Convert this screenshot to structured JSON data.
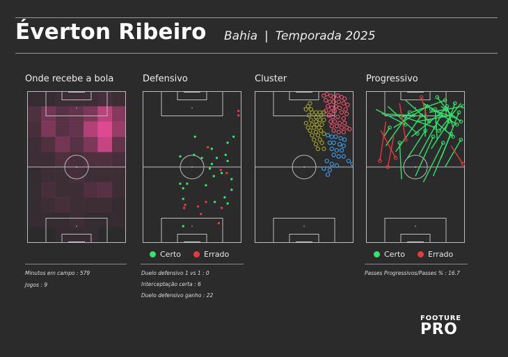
{
  "header": {
    "player": "Éverton Ribeiro",
    "team": "Bahia",
    "separator": "|",
    "season": "Temporada  2025"
  },
  "colors": {
    "background": "#2b2b2b",
    "line": "#bdbdbd",
    "certo": "#33e36a",
    "errado": "#e53a3a",
    "heat": "#ff4fa3",
    "cluster_olive": "#9aa024",
    "cluster_red": "#e8506a",
    "cluster_blue": "#3a9bea"
  },
  "panels": {
    "heatmap": {
      "title": "Onde recebe a bola"
    },
    "defensive": {
      "title": "Defensivo"
    },
    "cluster": {
      "title": "Cluster"
    },
    "progressive": {
      "title": "Progressivo"
    }
  },
  "legend": {
    "certo": "Certo",
    "errado": "Errado"
  },
  "stats": {
    "minutes": "Minutos em campo : 579",
    "games": "Jogos : 9",
    "duel_1v1": "Duelo defensivo 1 vs 1 :  0",
    "interceptions": "Interceptação certa :  6",
    "duels_won": "Duelo defensivo ganho :  22",
    "progressive_pct": "Passes Progressivos/Passes % :  16.7"
  },
  "brand": {
    "line1": "FOOTURE",
    "line2": "PRO"
  },
  "chart_data": [
    {
      "type": "heatmap",
      "title": "Onde recebe a bola",
      "grid_cols": 7,
      "grid_rows": 10,
      "values": [
        [
          0.05,
          0.05,
          0.1,
          0.1,
          0.1,
          0.15,
          0.1
        ],
        [
          0.2,
          0.4,
          0.25,
          0.3,
          0.45,
          0.8,
          0.5
        ],
        [
          0.15,
          0.45,
          0.25,
          0.3,
          0.75,
          1.0,
          0.6
        ],
        [
          0.1,
          0.2,
          0.4,
          0.25,
          0.45,
          0.85,
          0.3
        ],
        [
          0.1,
          0.1,
          0.2,
          0.15,
          0.2,
          0.2,
          0.15
        ],
        [
          0.05,
          0.1,
          0.1,
          0.15,
          0.1,
          0.1,
          0.1
        ],
        [
          0.05,
          0.15,
          0.1,
          0.1,
          0.2,
          0.25,
          0.1
        ],
        [
          0.05,
          0.1,
          0.15,
          0.1,
          0.1,
          0.1,
          0.05
        ],
        [
          0.05,
          0.05,
          0.05,
          0.1,
          0.05,
          0.05,
          0.05
        ],
        [
          0.0,
          0.0,
          0.05,
          0.05,
          0.05,
          0.0,
          0.0
        ]
      ]
    },
    {
      "type": "scatter",
      "title": "Defensivo",
      "series": [
        {
          "name": "Certo",
          "points": [
            [
              0.53,
              0.3
            ],
            [
              0.92,
              0.3
            ],
            [
              0.86,
              0.34
            ],
            [
              0.7,
              0.38
            ],
            [
              0.52,
              0.42
            ],
            [
              0.38,
              0.43
            ],
            [
              0.84,
              0.42
            ],
            [
              0.6,
              0.44
            ],
            [
              0.75,
              0.44
            ],
            [
              0.86,
              0.46
            ],
            [
              0.7,
              0.48
            ],
            [
              0.68,
              0.51
            ],
            [
              0.8,
              0.54
            ],
            [
              0.72,
              0.56
            ],
            [
              0.9,
              0.58
            ],
            [
              0.45,
              0.61
            ],
            [
              0.38,
              0.61
            ],
            [
              0.64,
              0.62
            ],
            [
              0.41,
              0.64
            ],
            [
              0.9,
              0.65
            ],
            [
              0.83,
              0.7
            ],
            [
              0.41,
              0.71
            ],
            [
              0.73,
              0.73
            ],
            [
              0.86,
              0.74
            ],
            [
              0.41,
              0.89
            ]
          ]
        },
        {
          "name": "Errado",
          "points": [
            [
              0.97,
              0.13
            ],
            [
              0.97,
              0.16
            ],
            [
              0.66,
              0.37
            ],
            [
              0.79,
              0.52
            ],
            [
              0.85,
              0.54
            ],
            [
              0.64,
              0.73
            ],
            [
              0.56,
              0.76
            ],
            [
              0.43,
              0.75
            ],
            [
              0.42,
              0.77
            ],
            [
              0.59,
              0.81
            ],
            [
              0.8,
              0.77
            ],
            [
              0.77,
              0.87
            ]
          ]
        }
      ]
    },
    {
      "type": "scatter",
      "title": "Cluster",
      "series": [
        {
          "name": "olive",
          "points": [
            [
              0.56,
              0.08
            ],
            [
              0.54,
              0.1
            ],
            [
              0.52,
              0.12
            ],
            [
              0.57,
              0.12
            ],
            [
              0.58,
              0.14
            ],
            [
              0.62,
              0.14
            ],
            [
              0.66,
              0.14
            ],
            [
              0.7,
              0.14
            ],
            [
              0.55,
              0.16
            ],
            [
              0.62,
              0.17
            ],
            [
              0.67,
              0.16
            ],
            [
              0.57,
              0.19
            ],
            [
              0.62,
              0.2
            ],
            [
              0.66,
              0.19
            ],
            [
              0.7,
              0.19
            ],
            [
              0.52,
              0.21
            ],
            [
              0.58,
              0.22
            ],
            [
              0.63,
              0.22
            ],
            [
              0.68,
              0.22
            ],
            [
              0.54,
              0.24
            ],
            [
              0.6,
              0.24
            ],
            [
              0.65,
              0.24
            ],
            [
              0.56,
              0.26
            ],
            [
              0.62,
              0.27
            ],
            [
              0.67,
              0.26
            ],
            [
              0.7,
              0.28
            ],
            [
              0.58,
              0.29
            ],
            [
              0.64,
              0.29
            ],
            [
              0.6,
              0.32
            ],
            [
              0.66,
              0.32
            ],
            [
              0.62,
              0.35
            ],
            [
              0.68,
              0.34
            ],
            [
              0.64,
              0.38
            ],
            [
              0.7,
              0.38
            ]
          ]
        },
        {
          "name": "red",
          "points": [
            [
              0.7,
              0.03
            ],
            [
              0.73,
              0.02
            ],
            [
              0.77,
              0.03
            ],
            [
              0.8,
              0.04
            ],
            [
              0.84,
              0.03
            ],
            [
              0.88,
              0.04
            ],
            [
              0.91,
              0.05
            ],
            [
              0.72,
              0.06
            ],
            [
              0.76,
              0.07
            ],
            [
              0.8,
              0.07
            ],
            [
              0.85,
              0.07
            ],
            [
              0.9,
              0.08
            ],
            [
              0.94,
              0.09
            ],
            [
              0.74,
              0.1
            ],
            [
              0.78,
              0.11
            ],
            [
              0.82,
              0.1
            ],
            [
              0.86,
              0.11
            ],
            [
              0.92,
              0.12
            ],
            [
              0.72,
              0.13
            ],
            [
              0.77,
              0.14
            ],
            [
              0.81,
              0.13
            ],
            [
              0.88,
              0.14
            ],
            [
              0.93,
              0.15
            ],
            [
              0.75,
              0.16
            ],
            [
              0.79,
              0.17
            ],
            [
              0.84,
              0.17
            ],
            [
              0.9,
              0.18
            ],
            [
              0.77,
              0.2
            ],
            [
              0.81,
              0.2
            ],
            [
              0.86,
              0.21
            ],
            [
              0.91,
              0.21
            ],
            [
              0.78,
              0.23
            ],
            [
              0.83,
              0.23
            ],
            [
              0.88,
              0.24
            ],
            [
              0.93,
              0.24
            ],
            [
              0.8,
              0.26
            ],
            [
              0.85,
              0.27
            ],
            [
              0.9,
              0.27
            ],
            [
              0.96,
              0.25
            ]
          ]
        },
        {
          "name": "blue",
          "points": [
            [
              0.74,
              0.29
            ],
            [
              0.78,
              0.3
            ],
            [
              0.82,
              0.3
            ],
            [
              0.87,
              0.31
            ],
            [
              0.91,
              0.32
            ],
            [
              0.76,
              0.34
            ],
            [
              0.8,
              0.34
            ],
            [
              0.86,
              0.35
            ],
            [
              0.9,
              0.36
            ],
            [
              0.78,
              0.38
            ],
            [
              0.83,
              0.39
            ],
            [
              0.88,
              0.39
            ],
            [
              0.8,
              0.42
            ],
            [
              0.85,
              0.43
            ],
            [
              0.9,
              0.43
            ],
            [
              0.73,
              0.46
            ],
            [
              0.78,
              0.48
            ],
            [
              0.83,
              0.49
            ],
            [
              0.7,
              0.51
            ],
            [
              0.76,
              0.52
            ],
            [
              0.95,
              0.46
            ],
            [
              0.99,
              0.48
            ],
            [
              0.74,
              0.55
            ]
          ]
        }
      ]
    },
    {
      "type": "scatter",
      "title": "Progressivo",
      "series": [
        {
          "name": "Certo",
          "segments": [
            [
              0.1,
              0.12,
              0.4,
              0.22
            ],
            [
              0.16,
              0.15,
              0.48,
              0.16
            ],
            [
              0.22,
              0.1,
              0.52,
              0.28
            ],
            [
              0.28,
              0.24,
              0.62,
              0.1
            ],
            [
              0.34,
              0.16,
              0.7,
              0.24
            ],
            [
              0.4,
              0.06,
              0.64,
              0.2
            ],
            [
              0.46,
              0.14,
              0.8,
              0.06
            ],
            [
              0.52,
              0.2,
              0.86,
              0.16
            ],
            [
              0.58,
              0.08,
              0.92,
              0.22
            ],
            [
              0.64,
              0.14,
              0.98,
              0.1
            ],
            [
              0.7,
              0.2,
              0.88,
              0.3
            ],
            [
              0.76,
              0.1,
              0.96,
              0.2
            ],
            [
              0.8,
              0.26,
              0.9,
              0.08
            ],
            [
              0.84,
              0.14,
              0.72,
              0.04
            ],
            [
              0.88,
              0.24,
              0.82,
              0.1
            ],
            [
              0.92,
              0.18,
              0.66,
              0.12
            ],
            [
              0.96,
              0.08,
              0.74,
              0.26
            ],
            [
              0.2,
              0.36,
              0.44,
              0.14
            ],
            [
              0.3,
              0.4,
              0.56,
              0.16
            ],
            [
              0.42,
              0.44,
              0.6,
              0.26
            ],
            [
              0.54,
              0.42,
              0.76,
              0.16
            ],
            [
              0.66,
              0.38,
              0.84,
              0.2
            ],
            [
              0.76,
              0.44,
              0.94,
              0.14
            ],
            [
              0.5,
              0.56,
              0.68,
              0.3
            ],
            [
              0.68,
              0.56,
              0.86,
              0.28
            ],
            [
              0.58,
              0.6,
              0.78,
              0.34
            ],
            [
              0.8,
              0.5,
              0.96,
              0.32
            ],
            [
              0.36,
              0.58,
              0.34,
              0.34
            ],
            [
              0.18,
              0.3,
              0.24,
              0.24
            ],
            [
              0.6,
              0.3,
              0.6,
              0.1
            ],
            [
              0.72,
              0.32,
              0.7,
              0.12
            ],
            [
              0.46,
              0.3,
              0.8,
              0.12
            ]
          ]
        },
        {
          "name": "Errado",
          "segments": [
            [
              0.15,
              0.26,
              0.3,
              0.44
            ],
            [
              0.2,
              0.2,
              0.14,
              0.46
            ],
            [
              0.28,
              0.3,
              0.22,
              0.5
            ],
            [
              0.34,
              0.08,
              0.4,
              0.32
            ],
            [
              0.62,
              0.18,
              0.56,
              0.04
            ],
            [
              0.86,
              0.36,
              0.98,
              0.48
            ]
          ]
        }
      ]
    }
  ]
}
